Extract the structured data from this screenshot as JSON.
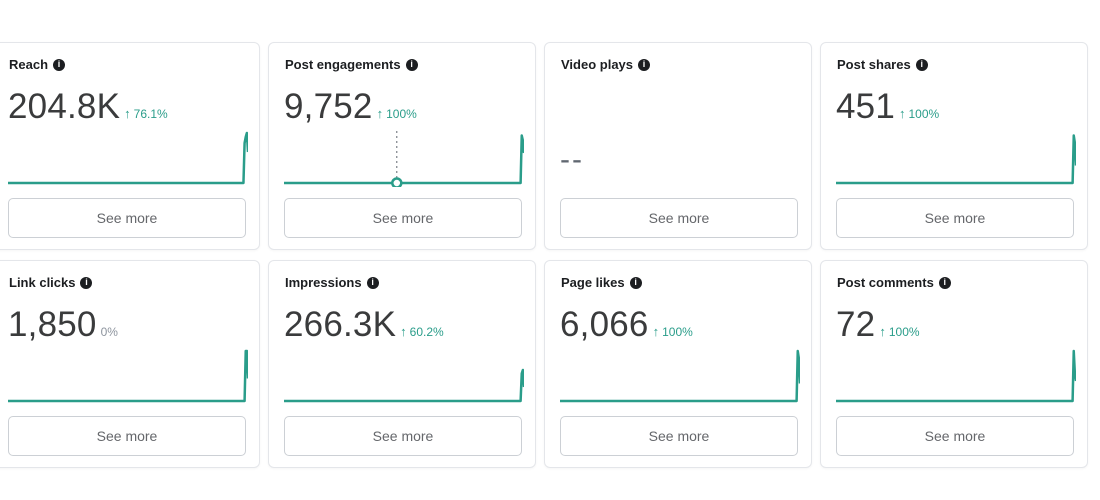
{
  "colors": {
    "accent": "#2a9d8a",
    "text": "#1c1e21",
    "muted": "#65676b",
    "border": "#e4e6ea"
  },
  "cards": [
    {
      "title": "Reach",
      "value": "204.8K",
      "change": "76.1%",
      "trend": "up",
      "button": "See more",
      "spark": [
        0,
        0,
        0,
        0,
        0,
        0,
        0,
        0,
        0,
        0,
        0,
        0,
        0,
        0,
        0,
        0,
        0,
        0,
        0,
        0,
        0,
        0,
        0,
        0,
        0,
        0,
        0,
        0,
        0,
        0,
        0,
        0,
        0,
        0,
        0,
        0,
        0,
        0,
        0,
        0,
        0,
        0,
        0,
        0,
        0,
        0,
        0,
        0,
        0,
        0,
        0,
        0,
        0,
        0,
        0,
        0,
        0,
        0,
        0,
        0,
        0,
        0,
        0,
        0,
        0,
        0,
        0,
        0,
        0,
        0,
        0,
        0,
        0,
        0,
        0,
        0,
        0,
        0,
        0,
        0,
        0,
        0,
        0,
        0,
        0,
        0,
        0,
        0,
        0,
        0,
        0,
        0,
        0,
        0,
        0,
        0,
        0,
        0,
        0,
        0,
        0,
        0,
        0,
        0,
        0,
        0,
        0,
        0,
        0,
        0,
        0,
        0,
        0,
        0,
        0,
        0,
        0,
        0,
        0,
        0,
        0,
        0,
        0,
        0,
        0,
        0,
        0,
        0,
        0,
        0,
        0,
        0,
        0,
        0,
        0,
        0,
        0,
        0,
        0,
        0,
        0,
        0,
        0,
        0,
        0,
        0,
        0,
        0,
        0,
        0,
        0,
        0,
        0,
        0,
        0,
        0,
        0,
        0,
        0,
        0,
        0,
        0,
        0,
        0,
        0,
        0,
        0,
        0,
        0,
        0,
        0,
        0,
        0,
        0,
        0,
        0,
        0,
        0,
        0,
        0,
        0,
        0,
        0,
        0,
        0,
        0,
        0,
        0,
        0,
        0,
        0,
        0,
        0,
        0,
        0,
        0,
        0,
        0,
        0,
        0,
        0,
        0,
        0,
        0,
        0,
        0,
        0,
        0,
        0.8,
        0.92,
        1.0,
        0.62
      ],
      "info_icon": "info-icon"
    },
    {
      "title": "Post engagements",
      "value": "9,752",
      "change": "100%",
      "trend": "up",
      "button": "See more",
      "spark": [
        0,
        0,
        0,
        0,
        0,
        0,
        0,
        0,
        0,
        0,
        0,
        0,
        0,
        0,
        0,
        0,
        0,
        0,
        0,
        0,
        0,
        0,
        0,
        0,
        0,
        0,
        0,
        0,
        0,
        0,
        0,
        0,
        0,
        0,
        0,
        0,
        0,
        0,
        0,
        0,
        0,
        0,
        0,
        0,
        0,
        0,
        0,
        0,
        0,
        0,
        0,
        0,
        0,
        0,
        0,
        0,
        0,
        0,
        0,
        0,
        0,
        0,
        0,
        0,
        0,
        0,
        0,
        0,
        0,
        0,
        0,
        0,
        0,
        0,
        0,
        0,
        0,
        0,
        0,
        0,
        0,
        0,
        0,
        0,
        0,
        0,
        0,
        0,
        0,
        0,
        0,
        0,
        0,
        0,
        0,
        0,
        0,
        0,
        0,
        0,
        0,
        0,
        0,
        0,
        0,
        0,
        0,
        0,
        0,
        0,
        0,
        0,
        0,
        0,
        0,
        0,
        0,
        0,
        0,
        0,
        0,
        0,
        0,
        0,
        0,
        0,
        0,
        0,
        0,
        0,
        0,
        0,
        0,
        0,
        0,
        0,
        0,
        0,
        0,
        0,
        0,
        0,
        0,
        0,
        0,
        0,
        0,
        0,
        0,
        0,
        0,
        0,
        0,
        0,
        0,
        0,
        0,
        0,
        0,
        0,
        0,
        0,
        0,
        0,
        0,
        0,
        0,
        0,
        0,
        0,
        0,
        0,
        0,
        0,
        0,
        0,
        0,
        0,
        0,
        0,
        0,
        0,
        0,
        0,
        0,
        0,
        0,
        0,
        0,
        0,
        0,
        0,
        0,
        0,
        0,
        0,
        0,
        0,
        0,
        0,
        0,
        0,
        0,
        0,
        0,
        0,
        0,
        0,
        0,
        0,
        0.95,
        0.85,
        0.6
      ],
      "marker_index": 0.47,
      "info_icon": "info-icon"
    },
    {
      "title": "Video plays",
      "value": "--",
      "change": "",
      "trend": "none",
      "button": "See more",
      "spark": [],
      "info_icon": "info-icon"
    },
    {
      "title": "Post shares",
      "value": "451",
      "change": "100%",
      "trend": "up",
      "button": "See more",
      "spark": [
        0,
        0,
        0,
        0,
        0,
        0,
        0,
        0,
        0,
        0,
        0,
        0,
        0,
        0,
        0,
        0,
        0,
        0,
        0,
        0,
        0,
        0,
        0,
        0,
        0,
        0,
        0,
        0,
        0,
        0,
        0,
        0,
        0,
        0,
        0,
        0,
        0,
        0,
        0,
        0,
        0,
        0,
        0,
        0,
        0,
        0,
        0,
        0,
        0,
        0,
        0,
        0,
        0,
        0,
        0,
        0,
        0,
        0,
        0,
        0,
        0,
        0,
        0,
        0,
        0,
        0,
        0,
        0,
        0,
        0,
        0,
        0,
        0,
        0,
        0,
        0,
        0,
        0,
        0,
        0,
        0,
        0,
        0,
        0,
        0,
        0,
        0,
        0,
        0,
        0,
        0,
        0,
        0,
        0,
        0,
        0,
        0,
        0,
        0,
        0,
        0,
        0,
        0,
        0,
        0,
        0,
        0,
        0,
        0,
        0,
        0,
        0,
        0,
        0,
        0,
        0,
        0,
        0,
        0,
        0,
        0,
        0,
        0,
        0,
        0,
        0,
        0,
        0,
        0,
        0,
        0,
        0,
        0,
        0,
        0,
        0,
        0,
        0,
        0,
        0,
        0,
        0,
        0,
        0,
        0,
        0,
        0,
        0,
        0,
        0,
        0,
        0,
        0,
        0,
        0,
        0,
        0,
        0,
        0,
        0,
        0,
        0,
        0,
        0,
        0,
        0,
        0,
        0,
        0,
        0,
        0,
        0,
        0,
        0,
        0,
        0,
        0,
        0,
        0,
        0,
        0,
        0,
        0,
        0,
        0,
        0,
        0,
        0,
        0,
        0,
        0,
        0,
        0,
        0,
        0,
        0,
        0,
        0,
        0,
        0,
        0,
        0,
        0,
        0,
        0,
        0,
        0,
        0,
        0,
        0,
        0,
        0.95,
        0.8,
        0.35
      ],
      "info_icon": "info-icon"
    },
    {
      "title": "Link clicks",
      "value": "1,850",
      "change": "0%",
      "trend": "flat",
      "button": "See more",
      "spark": [
        0,
        0,
        0,
        0,
        0,
        0,
        0,
        0,
        0,
        0,
        0,
        0,
        0,
        0,
        0,
        0,
        0,
        0,
        0,
        0,
        0,
        0,
        0,
        0,
        0,
        0,
        0,
        0,
        0,
        0,
        0,
        0,
        0,
        0,
        0,
        0,
        0,
        0,
        0,
        0,
        0,
        0,
        0,
        0,
        0,
        0,
        0,
        0,
        0,
        0,
        0,
        0,
        0,
        0,
        0,
        0,
        0,
        0,
        0,
        0,
        0,
        0,
        0,
        0,
        0,
        0,
        0,
        0,
        0,
        0,
        0,
        0,
        0,
        0,
        0,
        0,
        0,
        0,
        0,
        0,
        0,
        0,
        0,
        0,
        0,
        0,
        0,
        0,
        0,
        0,
        0,
        0,
        0,
        0,
        0,
        0,
        0,
        0,
        0,
        0,
        0,
        0,
        0,
        0,
        0,
        0,
        0,
        0,
        0,
        0,
        0,
        0,
        0,
        0,
        0,
        0,
        0,
        0,
        0,
        0,
        0,
        0,
        0,
        0,
        0,
        0,
        0,
        0,
        0,
        0,
        0,
        0,
        0,
        0,
        0,
        0,
        0,
        0,
        0,
        0,
        0,
        0,
        0,
        0,
        0,
        0,
        0,
        0,
        0,
        0,
        0,
        0,
        0,
        0,
        0,
        0,
        0,
        0,
        0,
        0,
        0,
        0,
        0,
        0,
        0,
        0,
        0,
        0,
        0,
        0,
        0,
        0,
        0,
        0,
        0,
        0,
        0,
        0,
        0,
        0,
        0,
        0,
        0,
        0,
        0,
        0,
        0,
        0,
        0,
        0,
        0,
        0,
        0,
        0,
        0,
        0,
        0,
        0,
        0,
        0,
        0,
        0,
        0,
        0,
        0,
        0,
        0,
        0,
        0,
        1.0,
        1.0,
        0.45
      ],
      "info_icon": "info-icon"
    },
    {
      "title": "Impressions",
      "value": "266.3K",
      "change": "60.2%",
      "trend": "up",
      "button": "See more",
      "spark": [
        0,
        0,
        0,
        0,
        0,
        0,
        0,
        0,
        0,
        0,
        0,
        0,
        0,
        0,
        0,
        0,
        0,
        0,
        0,
        0,
        0,
        0,
        0,
        0,
        0,
        0,
        0,
        0,
        0,
        0,
        0,
        0,
        0,
        0,
        0,
        0,
        0,
        0,
        0,
        0,
        0,
        0,
        0,
        0,
        0,
        0,
        0,
        0,
        0,
        0,
        0,
        0,
        0,
        0,
        0,
        0,
        0,
        0,
        0,
        0,
        0,
        0,
        0,
        0,
        0,
        0,
        0,
        0,
        0,
        0,
        0,
        0,
        0,
        0,
        0,
        0,
        0,
        0,
        0,
        0,
        0,
        0,
        0,
        0,
        0,
        0,
        0,
        0,
        0,
        0,
        0,
        0,
        0,
        0,
        0,
        0,
        0,
        0,
        0,
        0,
        0,
        0,
        0,
        0,
        0,
        0,
        0,
        0,
        0,
        0,
        0,
        0,
        0,
        0,
        0,
        0,
        0,
        0,
        0,
        0,
        0,
        0,
        0,
        0,
        0,
        0,
        0,
        0,
        0,
        0,
        0,
        0,
        0,
        0,
        0,
        0,
        0,
        0,
        0,
        0,
        0,
        0,
        0,
        0,
        0,
        0,
        0,
        0,
        0,
        0,
        0,
        0,
        0,
        0,
        0,
        0,
        0,
        0,
        0,
        0,
        0,
        0,
        0,
        0,
        0,
        0,
        0,
        0,
        0,
        0,
        0,
        0,
        0,
        0,
        0,
        0,
        0,
        0,
        0,
        0,
        0,
        0,
        0,
        0,
        0,
        0,
        0,
        0,
        0,
        0,
        0,
        0,
        0,
        0,
        0,
        0,
        0,
        0,
        0,
        0,
        0,
        0,
        0,
        0,
        0,
        0,
        0,
        0,
        0,
        0,
        0.55,
        0.62,
        0.28
      ],
      "info_icon": "info-icon"
    },
    {
      "title": "Page likes",
      "value": "6,066",
      "change": "100%",
      "trend": "up",
      "button": "See more",
      "spark": [
        0,
        0,
        0,
        0,
        0,
        0,
        0,
        0,
        0,
        0,
        0,
        0,
        0,
        0,
        0,
        0,
        0,
        0,
        0,
        0,
        0,
        0,
        0,
        0,
        0,
        0,
        0,
        0,
        0,
        0,
        0,
        0,
        0,
        0,
        0,
        0,
        0,
        0,
        0,
        0,
        0,
        0,
        0,
        0,
        0,
        0,
        0,
        0,
        0,
        0,
        0,
        0,
        0,
        0,
        0,
        0,
        0,
        0,
        0,
        0,
        0,
        0,
        0,
        0,
        0,
        0,
        0,
        0,
        0,
        0,
        0,
        0,
        0,
        0,
        0,
        0,
        0,
        0,
        0,
        0,
        0,
        0,
        0,
        0,
        0,
        0,
        0,
        0,
        0,
        0,
        0,
        0,
        0,
        0,
        0,
        0,
        0,
        0,
        0,
        0,
        0,
        0,
        0,
        0,
        0,
        0,
        0,
        0,
        0,
        0,
        0,
        0,
        0,
        0,
        0,
        0,
        0,
        0,
        0,
        0,
        0,
        0,
        0,
        0,
        0,
        0,
        0,
        0,
        0,
        0,
        0,
        0,
        0,
        0,
        0,
        0,
        0,
        0,
        0,
        0,
        0,
        0,
        0,
        0,
        0,
        0,
        0,
        0,
        0,
        0,
        0,
        0,
        0,
        0,
        0,
        0,
        0,
        0,
        0,
        0,
        0,
        0,
        0,
        0,
        0,
        0,
        0,
        0,
        0,
        0,
        0,
        0,
        0,
        0,
        0,
        0,
        0,
        0,
        0,
        0,
        0,
        0,
        0,
        0,
        0,
        0,
        0,
        0,
        0,
        0,
        0,
        0,
        0,
        0,
        0,
        0,
        0,
        0,
        0,
        0,
        0,
        0,
        0,
        0,
        0,
        0,
        0,
        0,
        0,
        0,
        1.0,
        0.85,
        0.35
      ],
      "info_icon": "info-icon"
    },
    {
      "title": "Post comments",
      "value": "72",
      "change": "100%",
      "trend": "up",
      "button": "See more",
      "spark": [
        0,
        0,
        0,
        0,
        0,
        0,
        0,
        0,
        0,
        0,
        0,
        0,
        0,
        0,
        0,
        0,
        0,
        0,
        0,
        0,
        0,
        0,
        0,
        0,
        0,
        0,
        0,
        0,
        0,
        0,
        0,
        0,
        0,
        0,
        0,
        0,
        0,
        0,
        0,
        0,
        0,
        0,
        0,
        0,
        0,
        0,
        0,
        0,
        0,
        0,
        0,
        0,
        0,
        0,
        0,
        0,
        0,
        0,
        0,
        0,
        0,
        0,
        0,
        0,
        0,
        0,
        0,
        0,
        0,
        0,
        0,
        0,
        0,
        0,
        0,
        0,
        0,
        0,
        0,
        0,
        0,
        0,
        0,
        0,
        0,
        0,
        0,
        0,
        0,
        0,
        0,
        0,
        0,
        0,
        0,
        0,
        0,
        0,
        0,
        0,
        0,
        0,
        0,
        0,
        0,
        0,
        0,
        0,
        0,
        0,
        0,
        0,
        0,
        0,
        0,
        0,
        0,
        0,
        0,
        0,
        0,
        0,
        0,
        0,
        0,
        0,
        0,
        0,
        0,
        0,
        0,
        0,
        0,
        0,
        0,
        0,
        0,
        0,
        0,
        0,
        0,
        0,
        0,
        0,
        0,
        0,
        0,
        0,
        0,
        0,
        0,
        0,
        0,
        0,
        0,
        0,
        0,
        0,
        0,
        0,
        0,
        0,
        0,
        0,
        0,
        0,
        0,
        0,
        0,
        0,
        0,
        0,
        0,
        0,
        0,
        0,
        0,
        0,
        0,
        0,
        0,
        0,
        0,
        0,
        0,
        0,
        0,
        0,
        0,
        0,
        0,
        0,
        0,
        0,
        0,
        0,
        0,
        0,
        0,
        0,
        0,
        0,
        0,
        0,
        0,
        0,
        0,
        0,
        0,
        0,
        1.0,
        0.55,
        0.4
      ],
      "info_icon": "info-icon"
    }
  ]
}
